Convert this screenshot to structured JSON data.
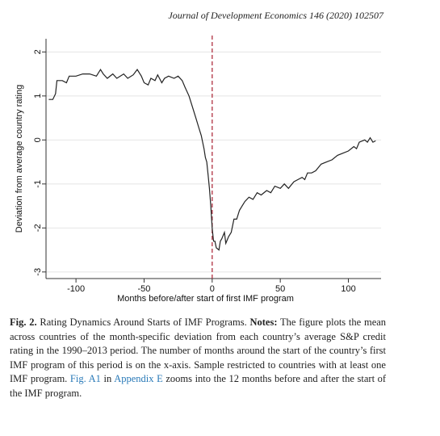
{
  "header": "Journal of Development Economics 146 (2020) 102507",
  "chart_data": {
    "type": "line",
    "ylabel": "Deviation from average country rating",
    "xlabel": "Months before/after start of first IMF program",
    "xlim": [
      -122,
      124
    ],
    "ylim": [
      -3.15,
      2.3
    ],
    "xticks": [
      -100,
      -50,
      0,
      50,
      100
    ],
    "yticks": [
      -3,
      -2,
      -1,
      0,
      1,
      2
    ],
    "grid": true,
    "vline": 0,
    "vline_color": "#b03040",
    "series": [
      {
        "color": "#222222",
        "x": [
          -120,
          -117,
          -115,
          -114,
          -110,
          -107,
          -105,
          -100,
          -95,
          -90,
          -85,
          -82,
          -80,
          -77,
          -73,
          -70,
          -65,
          -62,
          -58,
          -55,
          -52,
          -50,
          -47,
          -45,
          -42,
          -40,
          -37,
          -35,
          -32,
          -28,
          -25,
          -22,
          -20,
          -17,
          -15,
          -12,
          -10,
          -8,
          -6,
          -5,
          -4,
          -3,
          -2,
          -1,
          0,
          1,
          2,
          3,
          5,
          6,
          7,
          9,
          10,
          12,
          14,
          16,
          18,
          20,
          22,
          24,
          27,
          30,
          33,
          36,
          40,
          43,
          46,
          50,
          53,
          56,
          60,
          63,
          66,
          68,
          70,
          73,
          76,
          80,
          84,
          88,
          92,
          96,
          100,
          104,
          106,
          108,
          112,
          114,
          116,
          118,
          120
        ],
        "values": [
          0.92,
          0.92,
          1.05,
          1.35,
          1.35,
          1.3,
          1.45,
          1.45,
          1.5,
          1.5,
          1.45,
          1.6,
          1.5,
          1.4,
          1.5,
          1.4,
          1.5,
          1.4,
          1.48,
          1.6,
          1.45,
          1.3,
          1.25,
          1.4,
          1.35,
          1.48,
          1.3,
          1.4,
          1.45,
          1.4,
          1.45,
          1.35,
          1.2,
          1.0,
          0.8,
          0.5,
          0.3,
          0.1,
          -0.2,
          -0.4,
          -0.5,
          -0.8,
          -1.1,
          -1.5,
          -2.0,
          -2.3,
          -2.3,
          -2.45,
          -2.5,
          -2.3,
          -2.25,
          -2.1,
          -2.35,
          -2.2,
          -2.1,
          -1.8,
          -1.8,
          -1.6,
          -1.5,
          -1.4,
          -1.3,
          -1.35,
          -1.2,
          -1.25,
          -1.15,
          -1.2,
          -1.05,
          -1.1,
          -1.0,
          -1.1,
          -0.95,
          -0.9,
          -0.85,
          -0.9,
          -0.75,
          -0.75,
          -0.7,
          -0.55,
          -0.5,
          -0.45,
          -0.35,
          -0.3,
          -0.25,
          -0.15,
          -0.2,
          -0.05,
          0.0,
          -0.05,
          0.05,
          -0.05,
          -0.02
        ]
      }
    ]
  },
  "caption": {
    "label": "Fig. 2.",
    "title": "Rating Dynamics Around Starts of IMF Programs.",
    "notes_label": "Notes:",
    "text1": "The figure plots the mean across countries of the month-specific deviation from each country’s average S&P credit rating in the 1990–2013 period. The number of months around the start of the country’s first IMF program of this period is on the x-axis. Sample restricted to countries with at least one IMF program.",
    "link1": "Fig. A1",
    "text2": "in",
    "link2": "Appendix E",
    "text3": "zooms into the 12 months before and after the start of the IMF program."
  }
}
